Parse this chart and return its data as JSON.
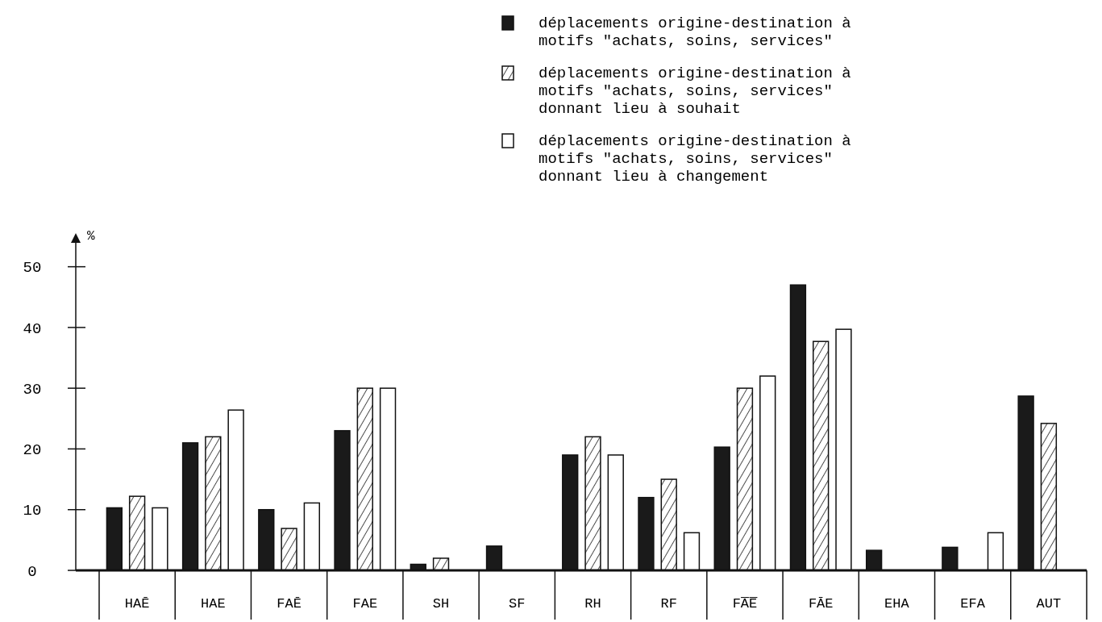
{
  "chart_data": {
    "type": "bar",
    "ylabel": "%",
    "categories": [
      "HAĒ",
      "HAE",
      "FAĒ",
      "FAE",
      "SH",
      "SF",
      "RH",
      "RF",
      "FA̅E̅",
      "FĀE",
      "EHA",
      "EFA",
      "AUT"
    ],
    "series": [
      {
        "name": "déplacements origine-destination à\nmotifs \"achats, soins, services\"",
        "color": "#1a1a1a",
        "values": [
          10.3,
          21,
          10,
          23,
          1,
          4,
          19,
          12,
          20.3,
          47,
          3.3,
          3.8,
          28.7
        ]
      },
      {
        "name": "déplacements origine-destination à\nmotifs \"achats, soins, services\"\ndonnant lieu à souhait",
        "color": "#111111",
        "values": [
          12.2,
          22,
          6.9,
          30,
          2,
          0,
          22,
          15,
          30,
          37.7,
          0,
          0,
          24.2
        ]
      },
      {
        "name": "déplacements origine-destination à\nmotifs \"achats, soins, services\"\ndonnant lieu à changement",
        "color": "#ffffff",
        "values": [
          10.3,
          26.4,
          11.1,
          30,
          0,
          0,
          19,
          6.2,
          32,
          39.7,
          0,
          6.2,
          null
        ]
      }
    ],
    "ylim": [
      0,
      55
    ],
    "yticks": [
      0,
      10,
      20,
      30,
      40,
      50
    ],
    "grid": false,
    "legend": "top right"
  }
}
